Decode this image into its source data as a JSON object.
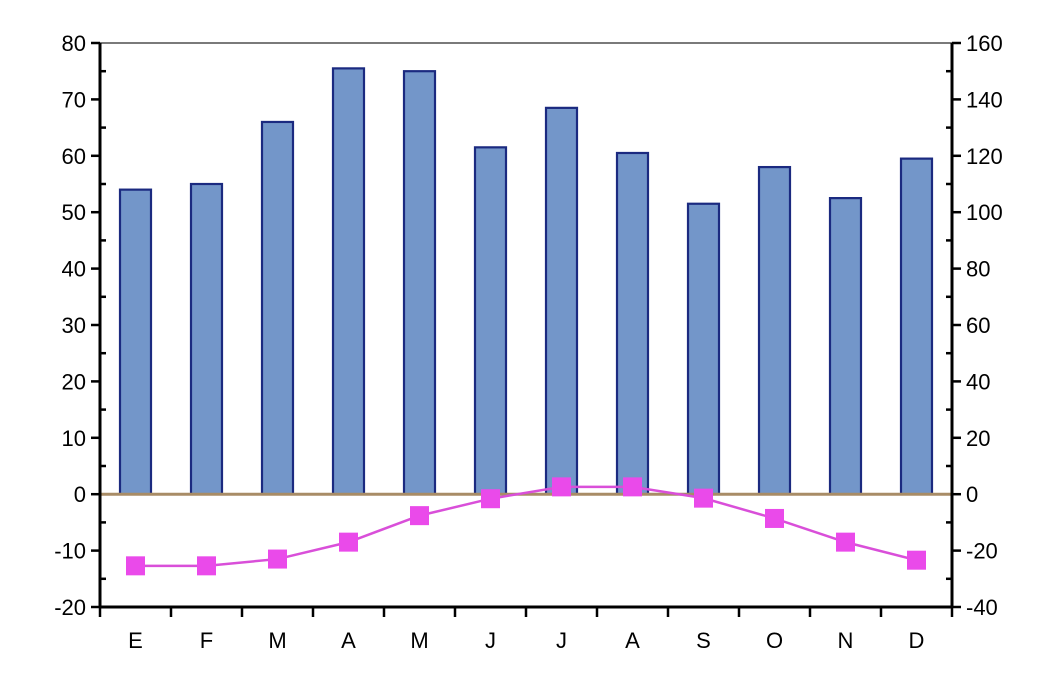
{
  "chart_data": {
    "type": "bar",
    "categories": [
      "E",
      "F",
      "M",
      "A",
      "M",
      "J",
      "J",
      "A",
      "S",
      "O",
      "N",
      "D"
    ],
    "series": [
      {
        "type": "bar",
        "axis": "right",
        "color": "#7396c9",
        "values": [
          108,
          110,
          132,
          151,
          150,
          123,
          137,
          121,
          103,
          116,
          105,
          119
        ]
      },
      {
        "type": "line",
        "axis": "left",
        "color": "#ea4aea",
        "values": [
          -12.7,
          -12.7,
          -11.5,
          -8.5,
          -3.8,
          -0.8,
          1.3,
          1.3,
          -0.7,
          -4.3,
          -8.5,
          -11.7
        ]
      }
    ],
    "y_left": {
      "min": -20,
      "max": 80,
      "ticks": [
        80,
        70,
        60,
        50,
        40,
        30,
        20,
        10,
        0,
        -10,
        -20
      ]
    },
    "y_right": {
      "min": -40,
      "max": 160,
      "ticks": [
        160,
        140,
        120,
        100,
        80,
        60,
        40,
        20,
        0,
        -20,
        -40
      ]
    },
    "grid": false,
    "legend": "none",
    "title": "",
    "xlabel": "",
    "ylabel": ""
  }
}
